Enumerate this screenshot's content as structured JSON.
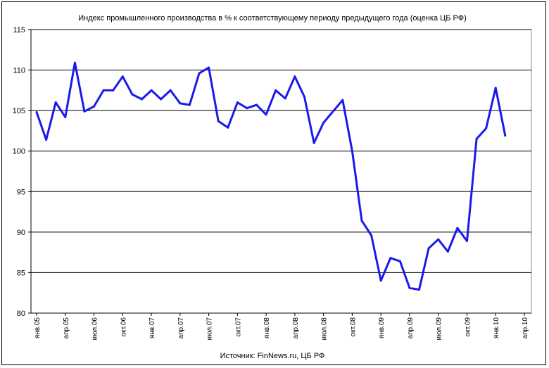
{
  "chart_data": {
    "type": "line",
    "title": "Индекс промышленного производства в % к соответствующему периоду предыдущего года (оценка ЦБ РФ)",
    "source": "Источник: FinNews.ru, ЦБ РФ",
    "ylim": [
      80,
      115
    ],
    "yticks": [
      "80",
      "85",
      "90",
      "95",
      "100",
      "105",
      "110",
      "115"
    ],
    "grid": true,
    "legend": "none",
    "line_color": "#1a1aeb",
    "x_tick_labels": [
      "янв.05",
      "апр.05",
      "июл.06",
      "окт.06",
      "янв.07",
      "апр.07",
      "июл.07",
      "окт.07",
      "янв.08",
      "апр.08",
      "июл.08",
      "окт.08",
      "янв.09",
      "апр.09",
      "июл.09",
      "окт.09",
      "янв.10",
      "апр.10"
    ],
    "series": [
      {
        "values": [
          104.8,
          101.4,
          106.0,
          104.2,
          110.9,
          104.9,
          105.5,
          107.5,
          107.5,
          109.2,
          107.0,
          106.4,
          107.5,
          106.4,
          107.5,
          105.9,
          105.7,
          109.6,
          110.3,
          103.7,
          102.9,
          106.0,
          105.3,
          105.7,
          104.5,
          107.5,
          106.5,
          109.2,
          106.7,
          101.0,
          103.5,
          104.9,
          106.3,
          100.0,
          91.4,
          89.6,
          84.0,
          86.8,
          86.4,
          83.1,
          82.9,
          88.0,
          89.1,
          87.6,
          90.5,
          88.9,
          101.5,
          102.8,
          107.8,
          101.9
        ]
      }
    ]
  }
}
